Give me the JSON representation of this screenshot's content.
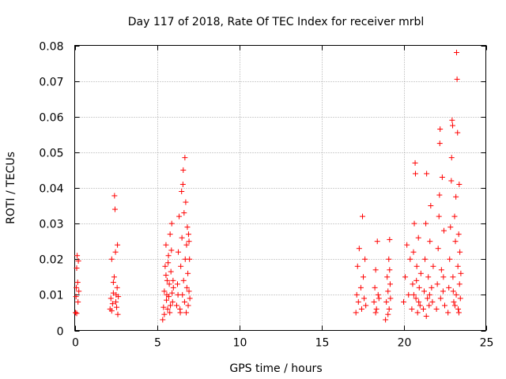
{
  "chart_data": {
    "type": "scatter",
    "title": "Day 117 of 2018, Rate Of TEC Index for receiver mrbl",
    "xlabel": "GPS time / hours",
    "ylabel": "ROTI / TECUs",
    "xlim": [
      0,
      25
    ],
    "ylim": [
      0,
      0.08
    ],
    "xticks": [
      0,
      5,
      10,
      15,
      20,
      25
    ],
    "xtick_labels": [
      "0",
      "5",
      "10",
      "15",
      "20",
      "25"
    ],
    "yticks": [
      0,
      0.01,
      0.02,
      0.03,
      0.04,
      0.05,
      0.06,
      0.07,
      0.08
    ],
    "ytick_labels": [
      "0",
      "0.01",
      "0.02",
      "0.03",
      "0.04",
      "0.05",
      "0.06",
      "0.07",
      "0.08"
    ],
    "grid": true,
    "marker": "+",
    "color": "#ff0000",
    "series": [
      {
        "name": "ROTI",
        "points": [
          [
            0.05,
            0.005
          ],
          [
            0.08,
            0.0095
          ],
          [
            0.1,
            0.012
          ],
          [
            0.12,
            0.0175
          ],
          [
            0.15,
            0.021
          ],
          [
            0.18,
            0.0135
          ],
          [
            0.2,
            0.008
          ],
          [
            0.22,
            0.0195
          ],
          [
            0.25,
            0.011
          ],
          [
            0.12,
            0.0048
          ],
          [
            2.15,
            0.006
          ],
          [
            2.2,
            0.009
          ],
          [
            2.25,
            0.02
          ],
          [
            2.3,
            0.0075
          ],
          [
            2.35,
            0.0105
          ],
          [
            2.4,
            0.015
          ],
          [
            2.42,
            0.0378
          ],
          [
            2.45,
            0.034
          ],
          [
            2.48,
            0.022
          ],
          [
            2.5,
            0.008
          ],
          [
            2.55,
            0.0065
          ],
          [
            2.58,
            0.012
          ],
          [
            2.6,
            0.024
          ],
          [
            2.62,
            0.0045
          ],
          [
            2.65,
            0.0095
          ],
          [
            2.25,
            0.0055
          ],
          [
            2.35,
            0.0135
          ],
          [
            2.52,
            0.01
          ],
          [
            5.35,
            0.003
          ],
          [
            5.4,
            0.0065
          ],
          [
            5.45,
            0.011
          ],
          [
            5.5,
            0.018
          ],
          [
            5.55,
            0.024
          ],
          [
            5.58,
            0.0085
          ],
          [
            5.62,
            0.014
          ],
          [
            5.65,
            0.006
          ],
          [
            5.7,
            0.021
          ],
          [
            5.72,
            0.0095
          ],
          [
            5.75,
            0.013
          ],
          [
            5.8,
            0.027
          ],
          [
            5.82,
            0.007
          ],
          [
            5.85,
            0.0165
          ],
          [
            5.9,
            0.03
          ],
          [
            5.92,
            0.0105
          ],
          [
            5.95,
            0.008
          ],
          [
            6.0,
            0.012
          ],
          [
            5.45,
            0.0045
          ],
          [
            5.55,
            0.0155
          ],
          [
            5.68,
            0.019
          ],
          [
            5.78,
            0.005
          ],
          [
            5.88,
            0.0225
          ],
          [
            5.6,
            0.01
          ],
          [
            5.98,
            0.014
          ],
          [
            6.2,
            0.007
          ],
          [
            6.25,
            0.013
          ],
          [
            6.3,
            0.022
          ],
          [
            6.35,
            0.032
          ],
          [
            6.4,
            0.006
          ],
          [
            6.45,
            0.018
          ],
          [
            6.5,
            0.039
          ],
          [
            6.52,
            0.026
          ],
          [
            6.55,
            0.01
          ],
          [
            6.6,
            0.045
          ],
          [
            6.62,
            0.014
          ],
          [
            6.65,
            0.033
          ],
          [
            6.68,
            0.008
          ],
          [
            6.7,
            0.0485
          ],
          [
            6.72,
            0.02
          ],
          [
            6.75,
            0.036
          ],
          [
            6.78,
            0.005
          ],
          [
            6.8,
            0.024
          ],
          [
            6.82,
            0.012
          ],
          [
            6.85,
            0.029
          ],
          [
            6.88,
            0.016
          ],
          [
            6.9,
            0.007
          ],
          [
            6.92,
            0.027
          ],
          [
            6.95,
            0.011
          ],
          [
            6.98,
            0.02
          ],
          [
            7.0,
            0.009
          ],
          [
            6.28,
            0.01
          ],
          [
            6.42,
            0.005
          ],
          [
            6.58,
            0.041
          ],
          [
            6.95,
            0.025
          ],
          [
            17.1,
            0.005
          ],
          [
            17.15,
            0.01
          ],
          [
            17.2,
            0.018
          ],
          [
            17.25,
            0.008
          ],
          [
            17.3,
            0.023
          ],
          [
            17.4,
            0.012
          ],
          [
            17.45,
            0.006
          ],
          [
            17.5,
            0.032
          ],
          [
            17.55,
            0.015
          ],
          [
            17.6,
            0.009
          ],
          [
            17.65,
            0.02
          ],
          [
            17.7,
            0.007
          ],
          [
            18.2,
            0.008
          ],
          [
            18.25,
            0.012
          ],
          [
            18.3,
            0.017
          ],
          [
            18.35,
            0.006
          ],
          [
            18.4,
            0.025
          ],
          [
            18.45,
            0.01
          ],
          [
            18.5,
            0.009
          ],
          [
            18.3,
            0.005
          ],
          [
            18.9,
            0.003
          ],
          [
            18.95,
            0.008
          ],
          [
            19.0,
            0.015
          ],
          [
            19.05,
            0.011
          ],
          [
            19.1,
            0.02
          ],
          [
            19.12,
            0.006
          ],
          [
            19.15,
            0.0255
          ],
          [
            19.18,
            0.013
          ],
          [
            19.2,
            0.009
          ],
          [
            19.05,
            0.0045
          ],
          [
            19.15,
            0.017
          ],
          [
            20.0,
            0.008
          ],
          [
            20.1,
            0.015
          ],
          [
            20.2,
            0.024
          ],
          [
            20.3,
            0.01
          ],
          [
            20.4,
            0.02
          ],
          [
            20.5,
            0.006
          ],
          [
            20.55,
            0.013
          ],
          [
            20.6,
            0.022
          ],
          [
            20.65,
            0.03
          ],
          [
            20.7,
            0.047
          ],
          [
            20.72,
            0.044
          ],
          [
            20.75,
            0.009
          ],
          [
            20.8,
            0.018
          ],
          [
            20.85,
            0.005
          ],
          [
            20.9,
            0.026
          ],
          [
            20.95,
            0.012
          ],
          [
            21.0,
            0.007
          ],
          [
            21.05,
            0.016
          ],
          [
            20.62,
            0.01
          ],
          [
            20.78,
            0.014
          ],
          [
            20.92,
            0.008
          ],
          [
            21.2,
            0.006
          ],
          [
            21.25,
            0.011
          ],
          [
            21.3,
            0.02
          ],
          [
            21.35,
            0.03
          ],
          [
            21.4,
            0.044
          ],
          [
            21.45,
            0.009
          ],
          [
            21.5,
            0.015
          ],
          [
            21.55,
            0.007
          ],
          [
            21.6,
            0.025
          ],
          [
            21.65,
            0.035
          ],
          [
            21.7,
            0.012
          ],
          [
            21.75,
            0.008
          ],
          [
            21.8,
            0.018
          ],
          [
            21.38,
            0.004
          ],
          [
            21.58,
            0.01
          ],
          [
            22.0,
            0.006
          ],
          [
            22.05,
            0.013
          ],
          [
            22.1,
            0.023
          ],
          [
            22.15,
            0.032
          ],
          [
            22.2,
            0.0525
          ],
          [
            22.22,
            0.0565
          ],
          [
            22.25,
            0.009
          ],
          [
            22.3,
            0.017
          ],
          [
            22.35,
            0.043
          ],
          [
            22.4,
            0.011
          ],
          [
            22.45,
            0.028
          ],
          [
            22.5,
            0.007
          ],
          [
            22.18,
            0.038
          ],
          [
            22.42,
            0.015
          ],
          [
            22.7,
            0.005
          ],
          [
            22.75,
            0.012
          ],
          [
            22.8,
            0.02
          ],
          [
            22.85,
            0.029
          ],
          [
            22.9,
            0.042
          ],
          [
            22.95,
            0.059
          ],
          [
            22.98,
            0.0575
          ],
          [
            23.0,
            0.015
          ],
          [
            23.05,
            0.008
          ],
          [
            23.1,
            0.032
          ],
          [
            23.15,
            0.025
          ],
          [
            23.18,
            0.0375
          ],
          [
            23.2,
            0.01
          ],
          [
            23.22,
            0.078
          ],
          [
            23.25,
            0.0705
          ],
          [
            23.28,
            0.0555
          ],
          [
            23.3,
            0.018
          ],
          [
            23.32,
            0.006
          ],
          [
            23.35,
            0.027
          ],
          [
            23.38,
            0.041
          ],
          [
            23.4,
            0.013
          ],
          [
            23.42,
            0.022
          ],
          [
            23.45,
            0.009
          ],
          [
            23.48,
            0.016
          ],
          [
            22.92,
            0.0485
          ],
          [
            23.02,
            0.011
          ],
          [
            23.12,
            0.007
          ],
          [
            23.36,
            0.005
          ]
        ]
      }
    ]
  }
}
